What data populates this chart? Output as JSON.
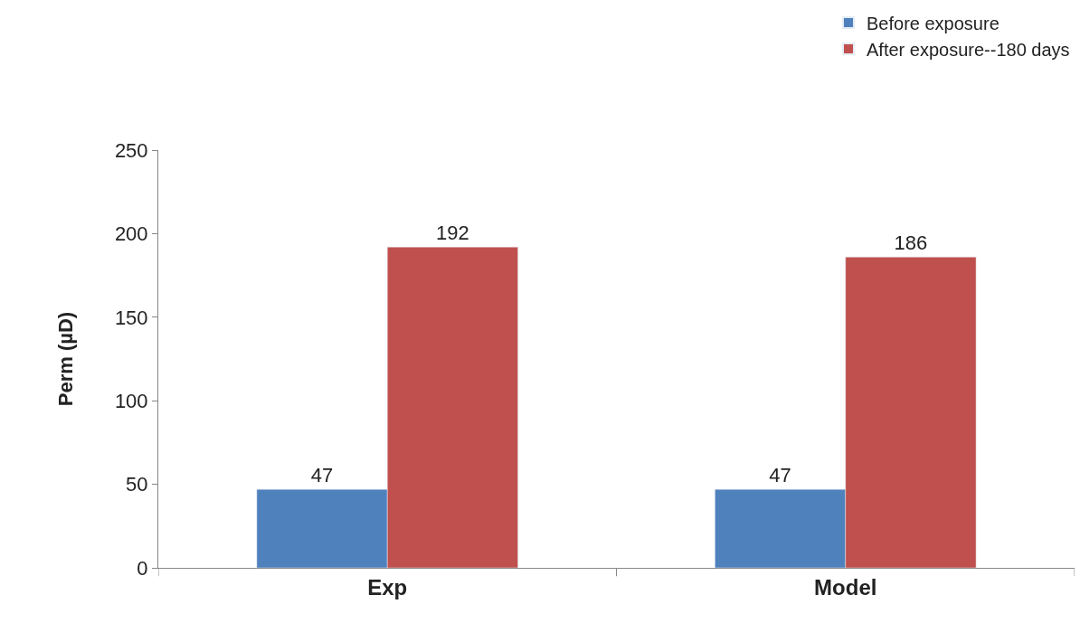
{
  "chart_data": {
    "type": "bar",
    "ylabel": "Perm (µD)",
    "categories": [
      "Exp",
      "Model"
    ],
    "series": [
      {
        "name": "Before exposure",
        "color": "#4f81bd",
        "values": [
          47,
          47
        ]
      },
      {
        "name": "After exposure--180 days",
        "color": "#c0504d",
        "values": [
          192,
          186
        ]
      }
    ],
    "ylim": [
      0,
      250
    ],
    "yticks": [
      0,
      50,
      100,
      150,
      200,
      250
    ],
    "data_labels": true,
    "legend": "top right"
  }
}
